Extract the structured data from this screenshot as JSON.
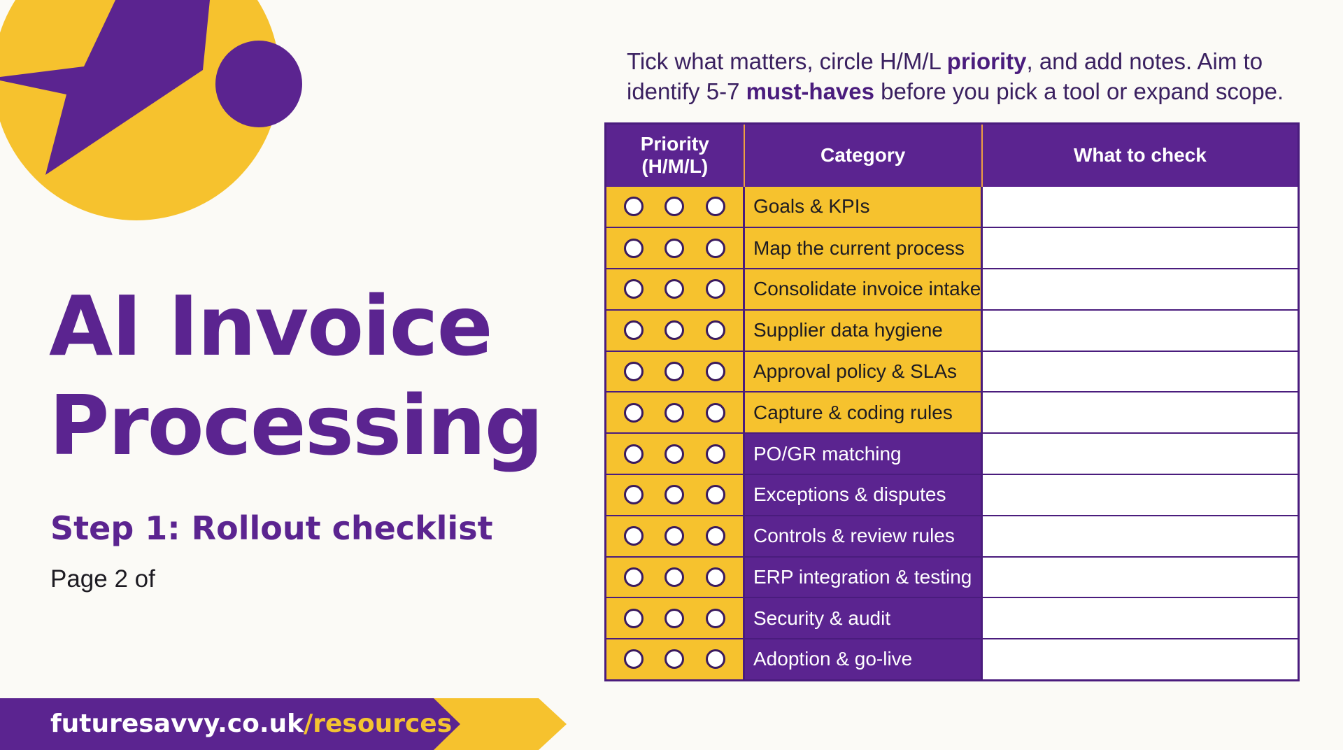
{
  "colors": {
    "purple": "#5b2490",
    "yellow": "#f6c22e",
    "background": "#fbfaf6"
  },
  "decoration": {
    "shapes": [
      "yellow-circle",
      "purple-star",
      "purple-dot"
    ]
  },
  "title": {
    "line1": "AI Invoice",
    "line2": "Processing"
  },
  "subtitle": "Step 1: Rollout checklist",
  "page_label": "Page 2 of",
  "intro": {
    "part1": "Tick what matters, circle H/M/L ",
    "bold1": "priority",
    "part2": ", and add notes. Aim to identify 5-7 ",
    "bold2": "must-haves",
    "part3": " before you pick a tool or expand scope."
  },
  "table": {
    "headers": {
      "priority_line1": "Priority",
      "priority_line2": "(H/M/L)",
      "category": "Category",
      "what_to_check": "What to check"
    },
    "rows": [
      {
        "category": "Goals & KPIs",
        "highlight": "yellow",
        "what_to_check": ""
      },
      {
        "category": "Map the current process",
        "highlight": "yellow",
        "what_to_check": ""
      },
      {
        "category": "Consolidate invoice intake",
        "highlight": "yellow",
        "what_to_check": ""
      },
      {
        "category": "Supplier data hygiene",
        "highlight": "yellow",
        "what_to_check": ""
      },
      {
        "category": "Approval policy & SLAs",
        "highlight": "yellow",
        "what_to_check": ""
      },
      {
        "category": "Capture & coding rules",
        "highlight": "yellow",
        "what_to_check": ""
      },
      {
        "category": "PO/GR matching",
        "highlight": "purple",
        "what_to_check": ""
      },
      {
        "category": "Exceptions & disputes",
        "highlight": "purple",
        "what_to_check": ""
      },
      {
        "category": "Controls & review rules",
        "highlight": "purple",
        "what_to_check": ""
      },
      {
        "category": "ERP integration & testing",
        "highlight": "purple",
        "what_to_check": ""
      },
      {
        "category": "Security & audit",
        "highlight": "purple",
        "what_to_check": ""
      },
      {
        "category": "Adoption & go-live",
        "highlight": "purple",
        "what_to_check": ""
      }
    ]
  },
  "footer": {
    "domain": "futuresavvy.co.uk",
    "path": "/resources"
  }
}
